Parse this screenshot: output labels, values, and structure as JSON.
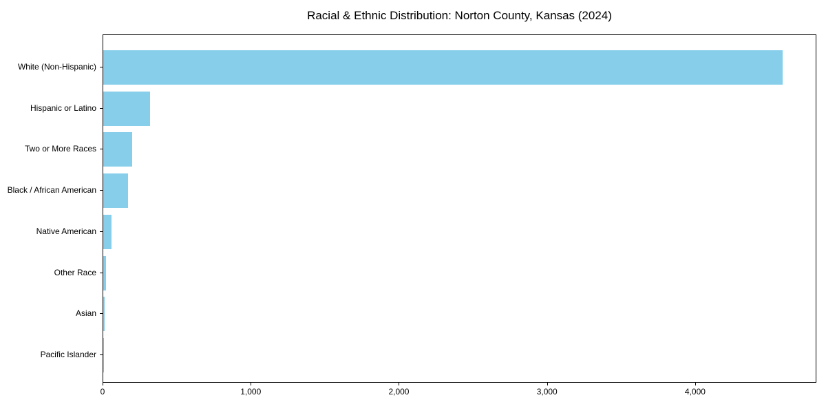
{
  "figure": {
    "background_color": "#ffffff"
  },
  "chart_data": {
    "type": "bar",
    "orientation": "horizontal",
    "title": "Racial & Ethnic Distribution: Norton County, Kansas (2024)",
    "categories": [
      "White (Non-Hispanic)",
      "Hispanic or Latino",
      "Two or More Races",
      "Black / African American",
      "Native American",
      "Other Race",
      "Asian",
      "Pacific Islander"
    ],
    "values": [
      4585,
      315,
      195,
      165,
      55,
      20,
      8,
      2
    ],
    "bar_color": "#87CEEB",
    "axis_color": "#000000",
    "text_color": "#000000",
    "xlabel": "",
    "ylabel": "",
    "xlim": [
      0,
      4818
    ],
    "x_ticks": [
      0,
      1000,
      2000,
      3000,
      4000
    ],
    "x_tick_labels": [
      "0",
      "1,000",
      "2,000",
      "3,000",
      "4,000"
    ],
    "grid": false,
    "legend_position": "none"
  }
}
